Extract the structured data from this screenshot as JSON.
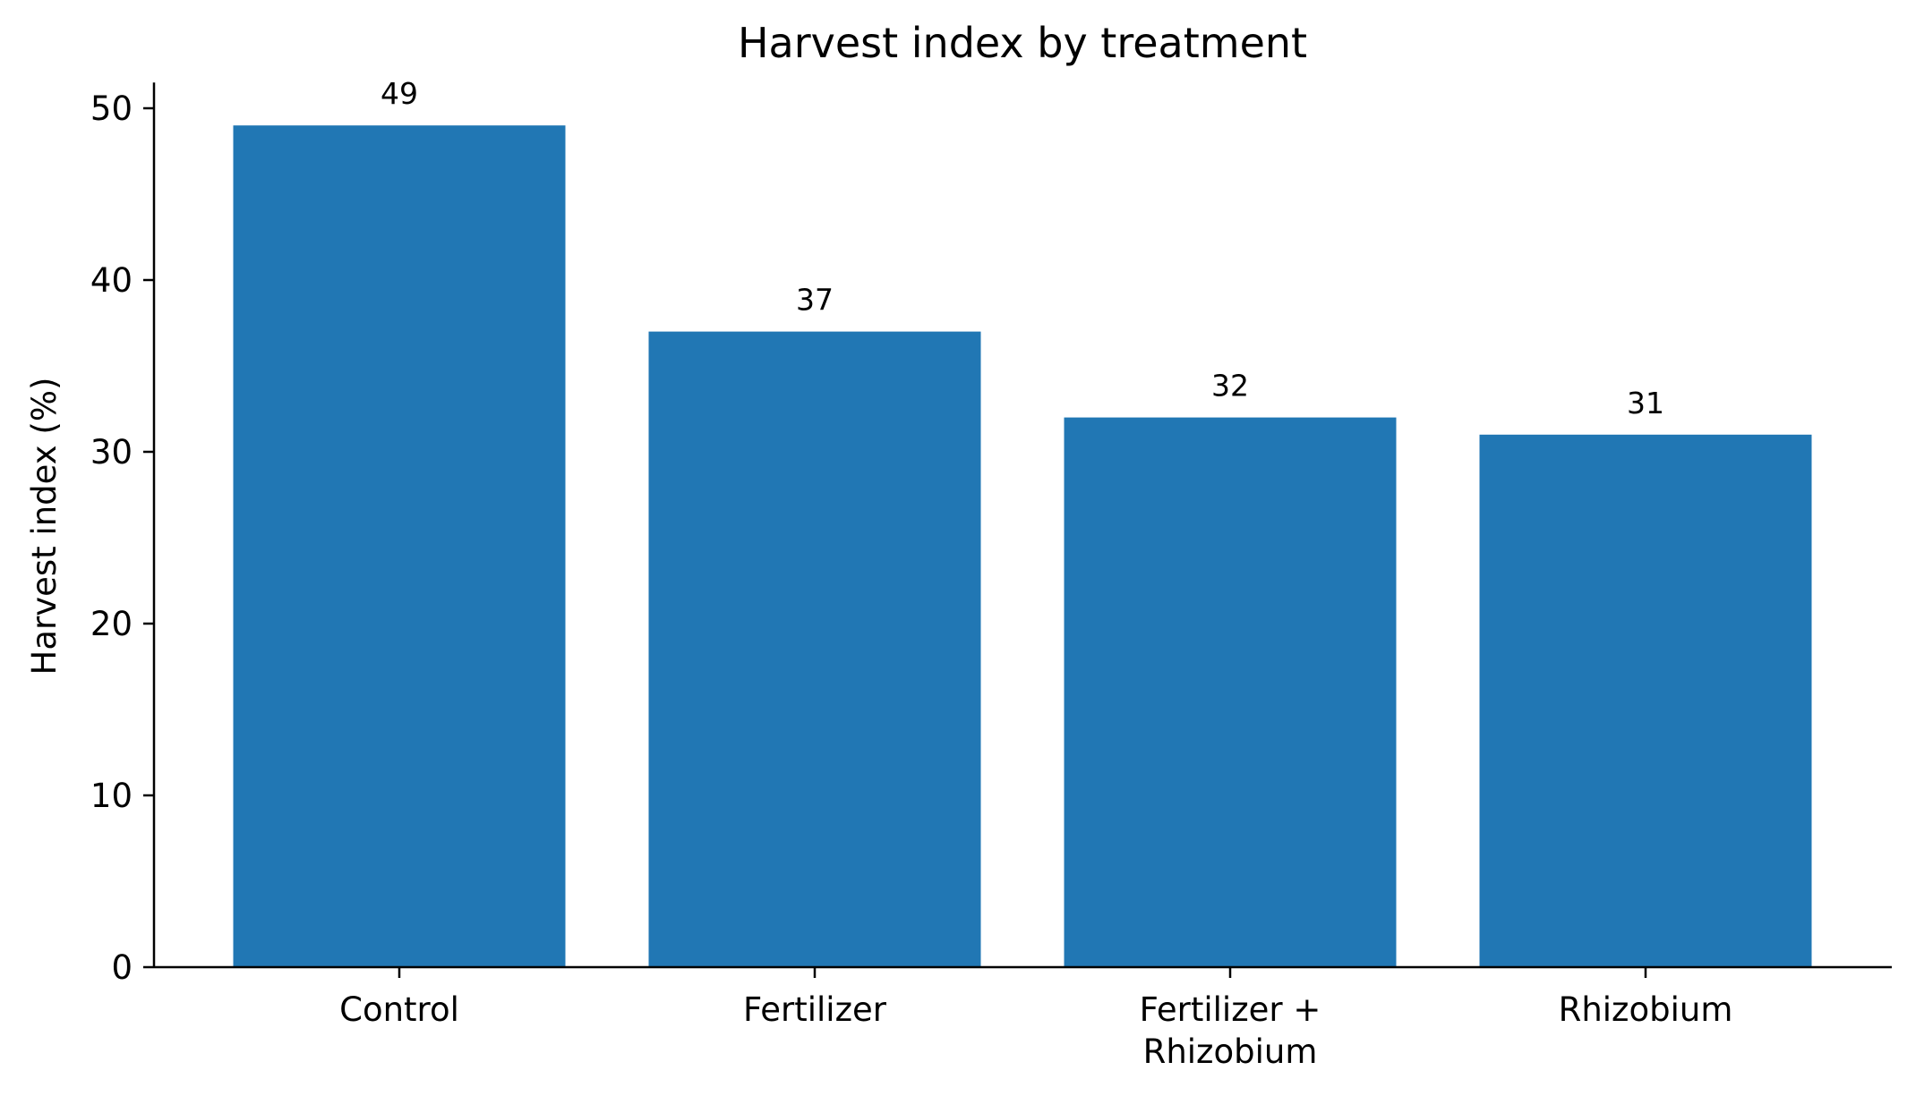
{
  "chart_data": {
    "type": "bar",
    "title": "Harvest index by treatment",
    "xlabel": "",
    "ylabel": "Harvest index (%)",
    "categories": [
      "Control",
      "Fertilizer",
      "Fertilizer +\nRhizobium",
      "Rhizobium"
    ],
    "values": [
      49,
      37,
      32,
      31
    ],
    "data_labels": [
      "49",
      "37",
      "32",
      "31"
    ],
    "ylim": [
      0,
      51.5
    ],
    "yticks": [
      0,
      10,
      20,
      30,
      40,
      50
    ],
    "grid": false,
    "legend": "none",
    "colors": {
      "bar": "#2177b4",
      "axis": "#000000",
      "text": "#000000"
    }
  }
}
